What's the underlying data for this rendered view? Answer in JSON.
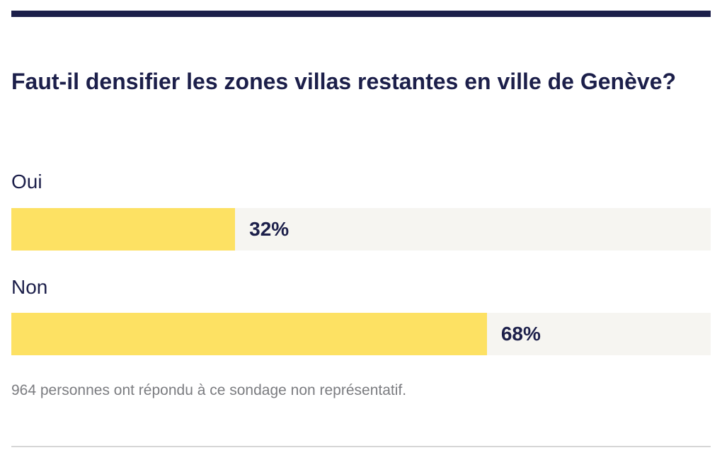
{
  "poll": {
    "question": "Faut-il densifier les zones villas restantes en ville de Genève?",
    "options": [
      {
        "label": "Oui",
        "value": 32,
        "value_text": "32%"
      },
      {
        "label": "Non",
        "value": 68,
        "value_text": "68%"
      }
    ],
    "footnote": "964 personnes ont répondu à ce sondage non représentatif."
  },
  "colors": {
    "primary": "#1c1f4a",
    "bar_fill": "#fde163",
    "bar_track": "#f6f5f1",
    "muted_text": "#7b7c80",
    "divider": "#d6d6d6"
  }
}
